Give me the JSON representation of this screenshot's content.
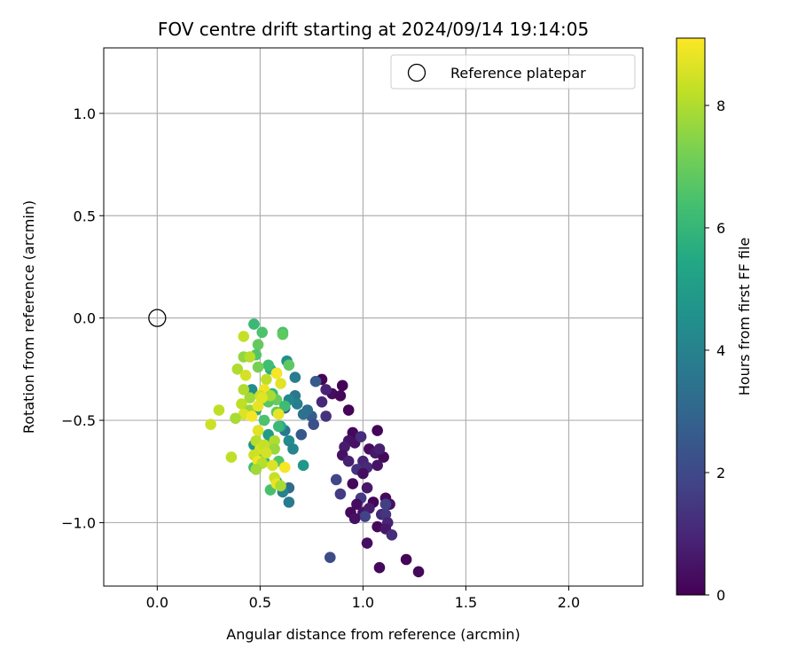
{
  "chart_data": {
    "type": "scatter",
    "title": "FOV centre drift starting at 2024/09/14 19:14:05",
    "xlabel": "Angular distance from reference (arcmin)",
    "ylabel": "Rotation from reference (arcmin)",
    "xlim": [
      -0.26,
      2.36
    ],
    "ylim": [
      -1.31,
      1.32
    ],
    "xticks": [
      0.0,
      0.5,
      1.0,
      1.5,
      2.0
    ],
    "xtick_labels": [
      "0.0",
      "0.5",
      "1.0",
      "1.5",
      "2.0"
    ],
    "yticks": [
      -1.0,
      -0.5,
      0.0,
      0.5,
      1.0
    ],
    "ytick_labels": [
      "−1.0",
      "−0.5",
      "0.0",
      "0.5",
      "1.0"
    ],
    "grid": true,
    "legend": {
      "placement": "top-right",
      "entries": [
        "Reference platepar"
      ]
    },
    "reference_point": {
      "x": 0.0,
      "y": 0.0,
      "marker": "open-circle"
    },
    "colorbar": {
      "label": "Hours from first FF file",
      "colormap": "viridis",
      "range": [
        0,
        9.1
      ],
      "ticks": [
        0,
        2,
        4,
        6,
        8
      ],
      "tick_labels": [
        "0",
        "2",
        "4",
        "6",
        "8"
      ]
    },
    "points": [
      {
        "x": 0.8,
        "y": -0.3,
        "h": 0.1
      },
      {
        "x": 0.9,
        "y": -0.33,
        "h": 0.1
      },
      {
        "x": 0.85,
        "y": -0.37,
        "h": 0.3
      },
      {
        "x": 0.89,
        "y": -0.38,
        "h": 0.2
      },
      {
        "x": 0.93,
        "y": -0.45,
        "h": 0.1
      },
      {
        "x": 0.82,
        "y": -0.35,
        "h": 0.9
      },
      {
        "x": 0.8,
        "y": -0.41,
        "h": 1.0
      },
      {
        "x": 0.82,
        "y": -0.48,
        "h": 1.3
      },
      {
        "x": 0.95,
        "y": -0.56,
        "h": 0.2
      },
      {
        "x": 0.93,
        "y": -0.6,
        "h": 0.5
      },
      {
        "x": 0.91,
        "y": -0.63,
        "h": 0.7
      },
      {
        "x": 0.96,
        "y": -0.61,
        "h": 0.4
      },
      {
        "x": 0.99,
        "y": -0.58,
        "h": 1.2
      },
      {
        "x": 1.07,
        "y": -0.55,
        "h": 0.1
      },
      {
        "x": 1.03,
        "y": -0.64,
        "h": 0.3
      },
      {
        "x": 1.06,
        "y": -0.66,
        "h": 0.6
      },
      {
        "x": 1.1,
        "y": -0.68,
        "h": 0.2
      },
      {
        "x": 1.0,
        "y": -0.7,
        "h": 0.9
      },
      {
        "x": 1.02,
        "y": -0.73,
        "h": 1.1
      },
      {
        "x": 0.9,
        "y": -0.67,
        "h": 0.4
      },
      {
        "x": 0.93,
        "y": -0.7,
        "h": 0.8
      },
      {
        "x": 0.97,
        "y": -0.74,
        "h": 1.3
      },
      {
        "x": 1.07,
        "y": -0.72,
        "h": 0.5
      },
      {
        "x": 1.08,
        "y": -0.64,
        "h": 0.8
      },
      {
        "x": 1.0,
        "y": -0.76,
        "h": 0.3
      },
      {
        "x": 0.95,
        "y": -0.81,
        "h": 0.2
      },
      {
        "x": 1.02,
        "y": -0.83,
        "h": 0.6
      },
      {
        "x": 0.99,
        "y": -0.88,
        "h": 1.6
      },
      {
        "x": 1.05,
        "y": -0.9,
        "h": 0.1
      },
      {
        "x": 1.11,
        "y": -0.88,
        "h": 0.2
      },
      {
        "x": 1.13,
        "y": -0.91,
        "h": 0.4
      },
      {
        "x": 0.97,
        "y": -0.91,
        "h": 0.3
      },
      {
        "x": 1.0,
        "y": -0.95,
        "h": 0.5
      },
      {
        "x": 1.03,
        "y": -0.93,
        "h": 0.7
      },
      {
        "x": 0.94,
        "y": -0.95,
        "h": 0.2
      },
      {
        "x": 1.01,
        "y": -0.97,
        "h": 1.8
      },
      {
        "x": 1.09,
        "y": -0.96,
        "h": 1.0
      },
      {
        "x": 1.11,
        "y": -0.96,
        "h": 1.4
      },
      {
        "x": 1.12,
        "y": -1.0,
        "h": 0.9
      },
      {
        "x": 0.96,
        "y": -0.98,
        "h": 0.4
      },
      {
        "x": 1.07,
        "y": -1.02,
        "h": 0.2
      },
      {
        "x": 1.11,
        "y": -1.03,
        "h": 0.6
      },
      {
        "x": 1.14,
        "y": -1.06,
        "h": 1.2
      },
      {
        "x": 1.02,
        "y": -1.1,
        "h": 0.3
      },
      {
        "x": 1.08,
        "y": -1.22,
        "h": 0.2
      },
      {
        "x": 1.21,
        "y": -1.18,
        "h": 0.1
      },
      {
        "x": 1.27,
        "y": -1.24,
        "h": 0.2
      },
      {
        "x": 0.84,
        "y": -1.17,
        "h": 2.1
      },
      {
        "x": 0.87,
        "y": -0.79,
        "h": 1.9
      },
      {
        "x": 0.89,
        "y": -0.86,
        "h": 1.6
      },
      {
        "x": 1.11,
        "y": -0.91,
        "h": 1.7
      },
      {
        "x": 0.77,
        "y": -0.31,
        "h": 2.6
      },
      {
        "x": 0.75,
        "y": -0.48,
        "h": 2.7
      },
      {
        "x": 0.76,
        "y": -0.52,
        "h": 2.2
      },
      {
        "x": 0.7,
        "y": -0.57,
        "h": 2.5
      },
      {
        "x": 0.73,
        "y": -0.45,
        "h": 3.2
      },
      {
        "x": 0.71,
        "y": -0.47,
        "h": 3.4
      },
      {
        "x": 0.67,
        "y": -0.38,
        "h": 3.6
      },
      {
        "x": 0.68,
        "y": -0.42,
        "h": 3.9
      },
      {
        "x": 0.67,
        "y": -0.29,
        "h": 3.8
      },
      {
        "x": 0.62,
        "y": -0.44,
        "h": 2.8
      },
      {
        "x": 0.64,
        "y": -0.4,
        "h": 4.2
      },
      {
        "x": 0.63,
        "y": -0.21,
        "h": 4.5
      },
      {
        "x": 0.64,
        "y": -0.6,
        "h": 4.3
      },
      {
        "x": 0.62,
        "y": -0.55,
        "h": 3.6
      },
      {
        "x": 0.66,
        "y": -0.64,
        "h": 4.1
      },
      {
        "x": 0.64,
        "y": -0.83,
        "h": 3.2
      },
      {
        "x": 0.64,
        "y": -0.9,
        "h": 3.8
      },
      {
        "x": 0.61,
        "y": -0.85,
        "h": 4.0
      },
      {
        "x": 0.71,
        "y": -0.72,
        "h": 4.8
      },
      {
        "x": 0.58,
        "y": -0.8,
        "h": 4.9
      },
      {
        "x": 0.6,
        "y": -0.53,
        "h": 5.2
      },
      {
        "x": 0.55,
        "y": -0.6,
        "h": 4.6
      },
      {
        "x": 0.54,
        "y": -0.57,
        "h": 5.0
      },
      {
        "x": 0.47,
        "y": -0.62,
        "h": 4.7
      },
      {
        "x": 0.46,
        "y": -0.35,
        "h": 4.4
      },
      {
        "x": 0.51,
        "y": -0.4,
        "h": 5.1
      },
      {
        "x": 0.48,
        "y": -0.45,
        "h": 5.4
      },
      {
        "x": 0.55,
        "y": -0.25,
        "h": 5.7
      },
      {
        "x": 0.54,
        "y": -0.23,
        "h": 6.3
      },
      {
        "x": 0.47,
        "y": -0.03,
        "h": 6.1
      },
      {
        "x": 0.51,
        "y": -0.07,
        "h": 6.5
      },
      {
        "x": 0.61,
        "y": -0.07,
        "h": 6.4
      },
      {
        "x": 0.61,
        "y": -0.08,
        "h": 6.8
      },
      {
        "x": 0.49,
        "y": -0.13,
        "h": 6.9
      },
      {
        "x": 0.48,
        "y": -0.18,
        "h": 6.6
      },
      {
        "x": 0.49,
        "y": -0.24,
        "h": 7.2
      },
      {
        "x": 0.64,
        "y": -0.23,
        "h": 6.8
      },
      {
        "x": 0.58,
        "y": -0.27,
        "h": 6.3
      },
      {
        "x": 0.56,
        "y": -0.37,
        "h": 6.0
      },
      {
        "x": 0.58,
        "y": -0.4,
        "h": 7.0
      },
      {
        "x": 0.62,
        "y": -0.43,
        "h": 6.2
      },
      {
        "x": 0.54,
        "y": -0.41,
        "h": 6.7
      },
      {
        "x": 0.52,
        "y": -0.5,
        "h": 6.5
      },
      {
        "x": 0.58,
        "y": -0.46,
        "h": 6.9
      },
      {
        "x": 0.59,
        "y": -0.53,
        "h": 6.1
      },
      {
        "x": 0.56,
        "y": -0.63,
        "h": 7.6
      },
      {
        "x": 0.55,
        "y": -0.84,
        "h": 6.4
      },
      {
        "x": 0.52,
        "y": -0.7,
        "h": 6.0
      },
      {
        "x": 0.59,
        "y": -0.7,
        "h": 6.6
      },
      {
        "x": 0.47,
        "y": -0.73,
        "h": 6.3
      },
      {
        "x": 0.49,
        "y": -0.66,
        "h": 6.8
      },
      {
        "x": 0.42,
        "y": -0.09,
        "h": 8.3
      },
      {
        "x": 0.42,
        "y": -0.19,
        "h": 7.6
      },
      {
        "x": 0.45,
        "y": -0.19,
        "h": 8.1
      },
      {
        "x": 0.39,
        "y": -0.25,
        "h": 8.0
      },
      {
        "x": 0.43,
        "y": -0.28,
        "h": 8.5
      },
      {
        "x": 0.53,
        "y": -0.3,
        "h": 8.2
      },
      {
        "x": 0.58,
        "y": -0.27,
        "h": 9.0
      },
      {
        "x": 0.6,
        "y": -0.32,
        "h": 8.7
      },
      {
        "x": 0.52,
        "y": -0.35,
        "h": 8.9
      },
      {
        "x": 0.42,
        "y": -0.35,
        "h": 8.0
      },
      {
        "x": 0.45,
        "y": -0.39,
        "h": 7.8
      },
      {
        "x": 0.5,
        "y": -0.38,
        "h": 8.4
      },
      {
        "x": 0.55,
        "y": -0.38,
        "h": 7.9
      },
      {
        "x": 0.41,
        "y": -0.42,
        "h": 8.2
      },
      {
        "x": 0.45,
        "y": -0.45,
        "h": 7.7
      },
      {
        "x": 0.49,
        "y": -0.43,
        "h": 8.8
      },
      {
        "x": 0.42,
        "y": -0.47,
        "h": 8.6
      },
      {
        "x": 0.38,
        "y": -0.49,
        "h": 7.9
      },
      {
        "x": 0.46,
        "y": -0.48,
        "h": 9.0
      },
      {
        "x": 0.59,
        "y": -0.47,
        "h": 8.8
      },
      {
        "x": 0.3,
        "y": -0.45,
        "h": 8.2
      },
      {
        "x": 0.26,
        "y": -0.52,
        "h": 8.4
      },
      {
        "x": 0.49,
        "y": -0.55,
        "h": 8.7
      },
      {
        "x": 0.48,
        "y": -0.6,
        "h": 8.1
      },
      {
        "x": 0.5,
        "y": -0.64,
        "h": 8.5
      },
      {
        "x": 0.52,
        "y": -0.62,
        "h": 8.3
      },
      {
        "x": 0.57,
        "y": -0.6,
        "h": 8.0
      },
      {
        "x": 0.57,
        "y": -0.64,
        "h": 7.7
      },
      {
        "x": 0.47,
        "y": -0.67,
        "h": 8.4
      },
      {
        "x": 0.49,
        "y": -0.7,
        "h": 8.9
      },
      {
        "x": 0.51,
        "y": -0.71,
        "h": 8.1
      },
      {
        "x": 0.56,
        "y": -0.72,
        "h": 8.6
      },
      {
        "x": 0.62,
        "y": -0.73,
        "h": 9.0
      },
      {
        "x": 0.36,
        "y": -0.68,
        "h": 8.2
      },
      {
        "x": 0.48,
        "y": -0.74,
        "h": 7.8
      },
      {
        "x": 0.57,
        "y": -0.78,
        "h": 8.3
      },
      {
        "x": 0.58,
        "y": -0.81,
        "h": 8.8
      },
      {
        "x": 0.6,
        "y": -0.82,
        "h": 7.9
      },
      {
        "x": 0.53,
        "y": -0.66,
        "h": 8.5
      },
      {
        "x": 0.51,
        "y": -0.39,
        "h": 8.7
      }
    ]
  }
}
